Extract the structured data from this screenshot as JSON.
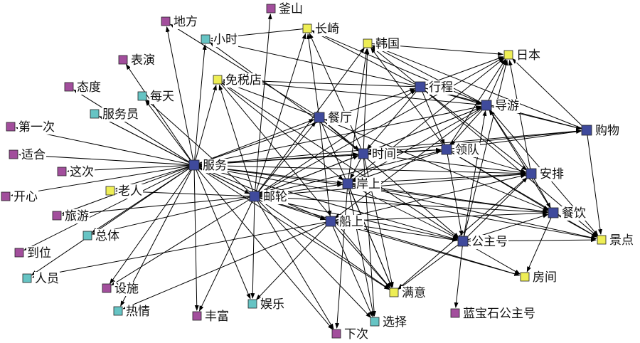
{
  "colors": {
    "purple": "#a24e9c",
    "cyan": "#66c4c4",
    "yellow": "#eeee55",
    "blue": "#3f4a9c",
    "edge": "#000000"
  },
  "nodes": [
    {
      "id": "地方",
      "group": "purple"
    },
    {
      "id": "釜山",
      "group": "purple"
    },
    {
      "id": "表演",
      "group": "purple"
    },
    {
      "id": "态度",
      "group": "purple"
    },
    {
      "id": "第一次",
      "group": "purple"
    },
    {
      "id": "适合",
      "group": "purple"
    },
    {
      "id": "这次",
      "group": "purple"
    },
    {
      "id": "开心",
      "group": "purple"
    },
    {
      "id": "旅游",
      "group": "purple"
    },
    {
      "id": "到位",
      "group": "purple"
    },
    {
      "id": "设施",
      "group": "purple"
    },
    {
      "id": "丰富",
      "group": "purple"
    },
    {
      "id": "下次",
      "group": "purple"
    },
    {
      "id": "蓝宝石公主号",
      "group": "purple"
    },
    {
      "id": "小时",
      "group": "cyan"
    },
    {
      "id": "每天",
      "group": "cyan"
    },
    {
      "id": "服务员",
      "group": "cyan"
    },
    {
      "id": "总体",
      "group": "cyan"
    },
    {
      "id": "人员",
      "group": "cyan"
    },
    {
      "id": "热情",
      "group": "cyan"
    },
    {
      "id": "娱乐",
      "group": "cyan"
    },
    {
      "id": "选择",
      "group": "cyan"
    },
    {
      "id": "长崎",
      "group": "yellow"
    },
    {
      "id": "韩国",
      "group": "yellow"
    },
    {
      "id": "日本",
      "group": "yellow"
    },
    {
      "id": "免税店",
      "group": "yellow"
    },
    {
      "id": "老人",
      "group": "yellow"
    },
    {
      "id": "满意",
      "group": "yellow"
    },
    {
      "id": "房间",
      "group": "yellow"
    },
    {
      "id": "景点",
      "group": "yellow"
    },
    {
      "id": "行程",
      "group": "blue"
    },
    {
      "id": "导游",
      "group": "blue"
    },
    {
      "id": "购物",
      "group": "blue"
    },
    {
      "id": "餐厅",
      "group": "blue"
    },
    {
      "id": "时间",
      "group": "blue"
    },
    {
      "id": "领队",
      "group": "blue"
    },
    {
      "id": "服务",
      "group": "blue"
    },
    {
      "id": "安排",
      "group": "blue"
    },
    {
      "id": "岸上",
      "group": "blue"
    },
    {
      "id": "邮轮",
      "group": "blue"
    },
    {
      "id": "餐饮",
      "group": "blue"
    },
    {
      "id": "船上",
      "group": "blue"
    },
    {
      "id": "公主号",
      "group": "blue"
    }
  ],
  "edges": [
    [
      "服务",
      "地方"
    ],
    [
      "服务",
      "表演"
    ],
    [
      "服务",
      "态度"
    ],
    [
      "服务",
      "第一次"
    ],
    [
      "服务",
      "适合"
    ],
    [
      "服务",
      "这次"
    ],
    [
      "服务",
      "开心"
    ],
    [
      "服务",
      "旅游"
    ],
    [
      "服务",
      "到位"
    ],
    [
      "服务",
      "人员"
    ],
    [
      "服务",
      "设施"
    ],
    [
      "服务",
      "热情"
    ],
    [
      "服务",
      "丰富"
    ],
    [
      "服务",
      "娱乐"
    ],
    [
      "服务",
      "每天"
    ],
    [
      "服务",
      "服务员"
    ],
    [
      "服务",
      "总体"
    ],
    [
      "服务",
      "老人"
    ],
    [
      "服务",
      "小时"
    ],
    [
      "服务",
      "免税店"
    ],
    [
      "服务",
      "下次"
    ],
    [
      "服务",
      "餐厅"
    ],
    [
      "服务",
      "时间"
    ],
    [
      "服务",
      "领队"
    ],
    [
      "服务",
      "行程"
    ],
    [
      "服务",
      "导游"
    ],
    [
      "服务",
      "安排"
    ],
    [
      "服务",
      "岸上"
    ],
    [
      "服务",
      "邮轮"
    ],
    [
      "服务",
      "餐饮"
    ],
    [
      "服务",
      "船上"
    ],
    [
      "服务",
      "公主号"
    ],
    [
      "服务",
      "满意"
    ],
    [
      "服务",
      "购物"
    ],
    [
      "服务",
      "景点"
    ],
    [
      "邮轮",
      "釜山"
    ],
    [
      "邮轮",
      "长崎"
    ],
    [
      "邮轮",
      "韩国"
    ],
    [
      "邮轮",
      "日本"
    ],
    [
      "邮轮",
      "免税店"
    ],
    [
      "邮轮",
      "老人"
    ],
    [
      "邮轮",
      "旅游"
    ],
    [
      "邮轮",
      "总体"
    ],
    [
      "邮轮",
      "设施"
    ],
    [
      "邮轮",
      "娱乐"
    ],
    [
      "邮轮",
      "丰富"
    ],
    [
      "邮轮",
      "下次"
    ],
    [
      "邮轮",
      "满意"
    ],
    [
      "邮轮",
      "选择"
    ],
    [
      "邮轮",
      "房间"
    ],
    [
      "邮轮",
      "餐饮"
    ],
    [
      "邮轮",
      "公主号"
    ],
    [
      "邮轮",
      "行程"
    ],
    [
      "邮轮",
      "导游"
    ],
    [
      "邮轮",
      "餐厅"
    ],
    [
      "邮轮",
      "时间"
    ],
    [
      "邮轮",
      "领队"
    ],
    [
      "邮轮",
      "安排"
    ],
    [
      "邮轮",
      "岸上"
    ],
    [
      "邮轮",
      "船上"
    ],
    [
      "邮轮",
      "每天"
    ],
    [
      "邮轮",
      "服务员"
    ],
    [
      "行程",
      "长崎"
    ],
    [
      "行程",
      "韩国"
    ],
    [
      "行程",
      "日本"
    ],
    [
      "行程",
      "免税店"
    ],
    [
      "行程",
      "小时"
    ],
    [
      "行程",
      "导游"
    ],
    [
      "行程",
      "领队"
    ],
    [
      "行程",
      "时间"
    ],
    [
      "行程",
      "购物"
    ],
    [
      "行程",
      "安排"
    ],
    [
      "行程",
      "景点"
    ],
    [
      "导游",
      "日本"
    ],
    [
      "导游",
      "韩国"
    ],
    [
      "导游",
      "长崎"
    ],
    [
      "导游",
      "免税店"
    ],
    [
      "导游",
      "领队"
    ],
    [
      "导游",
      "时间"
    ],
    [
      "导游",
      "购物"
    ],
    [
      "导游",
      "景点"
    ],
    [
      "导游",
      "船上"
    ],
    [
      "导游",
      "岸上"
    ],
    [
      "餐厅",
      "长崎"
    ],
    [
      "餐厅",
      "免税店"
    ],
    [
      "餐厅",
      "时间"
    ],
    [
      "餐厅",
      "餐饮"
    ],
    [
      "餐厅",
      "船上"
    ],
    [
      "餐厅",
      "满意"
    ],
    [
      "餐厅",
      "公主号"
    ],
    [
      "餐厅",
      "地方"
    ],
    [
      "时间",
      "韩国"
    ],
    [
      "时间",
      "长崎"
    ],
    [
      "时间",
      "领队"
    ],
    [
      "时间",
      "岸上"
    ],
    [
      "时间",
      "安排"
    ],
    [
      "时间",
      "购物"
    ],
    [
      "时间",
      "小时"
    ],
    [
      "时间",
      "满意"
    ],
    [
      "时间",
      "选择"
    ],
    [
      "领队",
      "日本"
    ],
    [
      "领队",
      "韩国"
    ],
    [
      "领队",
      "购物"
    ],
    [
      "领队",
      "安排"
    ],
    [
      "领队",
      "餐饮"
    ],
    [
      "领队",
      "公主号"
    ],
    [
      "领队",
      "景点"
    ],
    [
      "领队",
      "岸上"
    ],
    [
      "岸上",
      "韩国"
    ],
    [
      "岸上",
      "日本"
    ],
    [
      "岸上",
      "安排"
    ],
    [
      "岸上",
      "餐饮"
    ],
    [
      "岸上",
      "公主号"
    ],
    [
      "岸上",
      "满意"
    ],
    [
      "岸上",
      "选择"
    ],
    [
      "岸上",
      "下次"
    ],
    [
      "岸上",
      "景点"
    ],
    [
      "船上",
      "公主号"
    ],
    [
      "船上",
      "餐饮"
    ],
    [
      "船上",
      "安排"
    ],
    [
      "船上",
      "满意"
    ],
    [
      "船上",
      "房间"
    ],
    [
      "船上",
      "选择"
    ],
    [
      "船上",
      "热情"
    ],
    [
      "船上",
      "人员"
    ],
    [
      "船上",
      "娱乐"
    ],
    [
      "公主号",
      "日本"
    ],
    [
      "公主号",
      "导游"
    ],
    [
      "公主号",
      "安排"
    ],
    [
      "公主号",
      "餐饮"
    ],
    [
      "公主号",
      "满意"
    ],
    [
      "公主号",
      "房间"
    ],
    [
      "公主号",
      "蓝宝石公主号"
    ],
    [
      "公主号",
      "景点"
    ],
    [
      "安排",
      "日本"
    ],
    [
      "安排",
      "导游"
    ],
    [
      "安排",
      "餐饮"
    ],
    [
      "安排",
      "满意"
    ],
    [
      "餐饮",
      "景点"
    ],
    [
      "餐饮",
      "房间"
    ],
    [
      "餐饮",
      "导游"
    ],
    [
      "购物",
      "日本"
    ],
    [
      "购物",
      "景点"
    ],
    [
      "购物",
      "韩国"
    ],
    [
      "韩国",
      "日本"
    ],
    [
      "长崎",
      "小时"
    ],
    [
      "免税店",
      "公主号"
    ],
    [
      "免税店",
      "岸上"
    ],
    [
      "免税店",
      "满意"
    ]
  ]
}
